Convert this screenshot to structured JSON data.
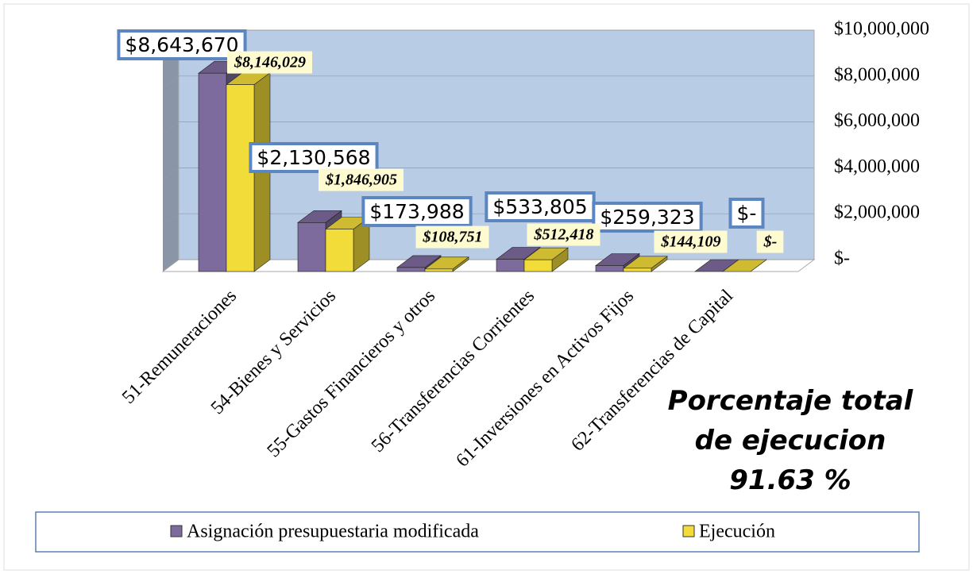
{
  "chart_data": {
    "type": "bar3d",
    "categories": [
      "51-Remuneraciones",
      "54-Bienes y Servicios",
      "55-Gastos Financieros y otros",
      "56-Transferencias Corrientes",
      "61-Inversiones en Activos Fijos",
      "62-Transferencias de Capital"
    ],
    "series": [
      {
        "name": "Asignación presupuestaria modificada",
        "color": "#7e6b9e",
        "values": [
          8643670,
          2130568,
          173988,
          533805,
          259323,
          0
        ],
        "value_labels": [
          "$8,643,670",
          "$2,130,568",
          "$173,988",
          "$533,805",
          "$259,323",
          "$-"
        ]
      },
      {
        "name": "Ejecución",
        "color": "#f2dc3a",
        "values": [
          8146029,
          1846905,
          108751,
          512418,
          144109,
          0
        ],
        "value_labels": [
          "$8,146,029",
          "$1,846,905",
          "$108,751",
          "$512,418",
          "$144,109",
          "$-"
        ]
      }
    ],
    "ylim": [
      0,
      10000000
    ],
    "yticks": [
      {
        "value": 0,
        "label": "$-"
      },
      {
        "value": 2000000,
        "label": "$2,000,000"
      },
      {
        "value": 4000000,
        "label": "$4,000,000"
      },
      {
        "value": 6000000,
        "label": "$6,000,000"
      },
      {
        "value": 8000000,
        "label": "$8,000,000"
      },
      {
        "value": 10000000,
        "label": "$10,000,000"
      }
    ],
    "annotation": "Porcentaje total de ejecucion 91.63 %"
  }
}
